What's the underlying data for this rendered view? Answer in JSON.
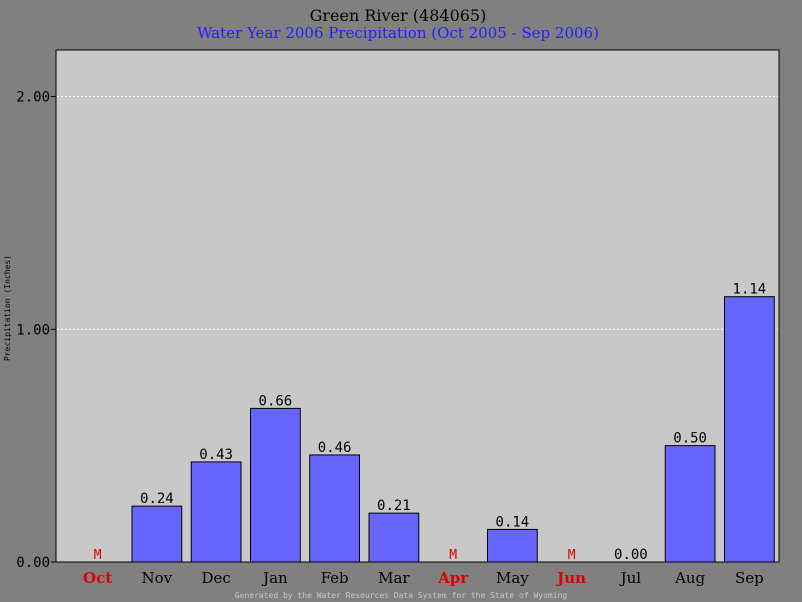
{
  "chart_data": {
    "type": "bar",
    "title": "Green River (484065)",
    "subtitle": "Water Year 2006 Precipitation (Oct 2005 - Sep 2006)",
    "ylabel": "Precipitation (Inches)",
    "footer": "Generated by the Water Resources Data System for the State of Wyoming",
    "ylim": [
      0,
      2.2
    ],
    "yticks": [
      "0.00",
      "1.00",
      "2.00"
    ],
    "ytick_values": [
      0,
      1,
      2
    ],
    "grid": true,
    "categories": [
      "Oct",
      "Nov",
      "Dec",
      "Jan",
      "Feb",
      "Mar",
      "Apr",
      "May",
      "Jun",
      "Jul",
      "Aug",
      "Sep"
    ],
    "values": [
      null,
      0.24,
      0.43,
      0.66,
      0.46,
      0.21,
      null,
      0.14,
      null,
      0.0,
      0.5,
      1.14
    ],
    "value_labels": [
      "M",
      "0.24",
      "0.43",
      "0.66",
      "0.46",
      "0.21",
      "M",
      "0.14",
      "M",
      "0.00",
      "0.50",
      "1.14"
    ],
    "missing_marker": "M",
    "colors": {
      "background": "#808080",
      "plot_bg": "#c8c8c8",
      "bar": "#6666ff",
      "title": "#000000",
      "subtitle": "#2020ff",
      "missing": "#dd0000",
      "footer": "#c8c8c8"
    }
  }
}
